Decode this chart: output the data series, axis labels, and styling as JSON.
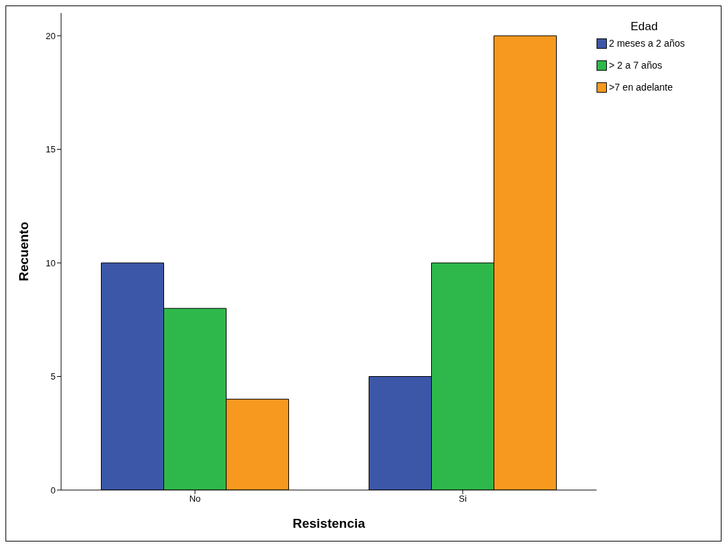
{
  "chart_data": {
    "type": "bar",
    "xlabel": "Resistencia",
    "ylabel": "Recuento",
    "legend_title": "Edad",
    "categories": [
      "No",
      "Si"
    ],
    "series": [
      {
        "name": "2 meses a 2 años",
        "color": "#3d57a8",
        "values": [
          10,
          5
        ]
      },
      {
        "name": "> 2 a 7 años",
        "color": "#2eb84b",
        "values": [
          8,
          10
        ]
      },
      {
        "name": ">7 en adelante",
        "color": "#f7991f",
        "values": [
          4,
          20
        ]
      }
    ],
    "ylim": [
      0,
      21
    ],
    "yticks": [
      0,
      5,
      10,
      15,
      20
    ],
    "grid": false,
    "legend": "top right"
  }
}
